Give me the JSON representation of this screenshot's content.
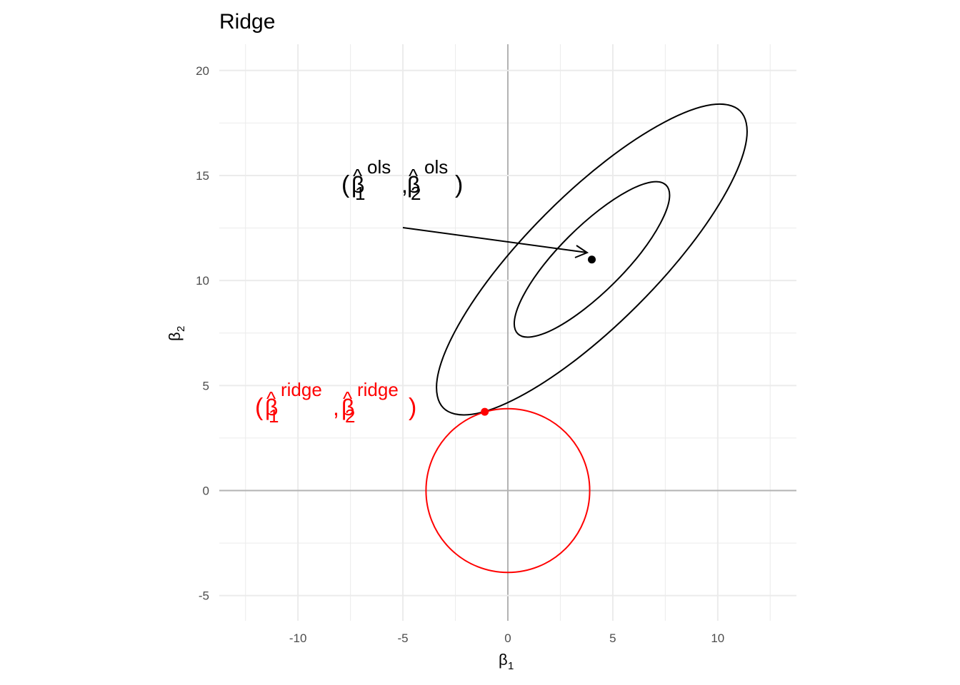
{
  "chart_data": {
    "type": "contour",
    "title": "Ridge",
    "xlabel": {
      "symbol": "β",
      "sub": "1"
    },
    "ylabel": {
      "symbol": "β",
      "sub": "2"
    },
    "xlim": [
      -13.75,
      13.75
    ],
    "ylim": [
      -6.2,
      21.25
    ],
    "xticks": [
      -10,
      -5,
      0,
      5,
      10
    ],
    "yticks": [
      -5,
      0,
      5,
      10,
      15,
      20
    ],
    "xminor": [
      -12.5,
      -7.5,
      -2.5,
      2.5,
      7.5,
      12.5
    ],
    "yminor": [
      -2.5,
      2.5,
      7.5,
      12.5,
      17.5
    ],
    "grid": true,
    "contours": [
      {
        "color": "#000000",
        "x": [
          11.07,
          9.7,
          7.46,
          4.69,
          1.82,
          -0.72,
          -2.54,
          -3.37,
          -3.07,
          -1.7,
          0.54,
          3.31,
          6.18,
          8.72,
          10.54,
          11.37
        ],
        "y": [
          18.07,
          18.37,
          17.54,
          15.72,
          13.18,
          10.31,
          7.54,
          5.3,
          3.93,
          3.63,
          4.46,
          6.28,
          8.82,
          11.69,
          14.46,
          16.7
        ]
      },
      {
        "color": "#000000",
        "x": [
          7.54,
          6.85,
          5.73,
          4.35,
          2.91,
          1.64,
          0.73,
          0.32,
          0.47,
          1.15,
          2.27,
          3.65,
          5.09,
          6.36,
          7.27,
          7.69
        ],
        "y": [
          14.54,
          14.69,
          14.27,
          13.36,
          12.09,
          10.66,
          9.27,
          8.15,
          7.47,
          7.32,
          7.73,
          8.64,
          9.91,
          11.34,
          12.73,
          13.85
        ]
      }
    ],
    "constraint": {
      "color": "#ff0000",
      "x": 0,
      "y": 0,
      "r": 3.9
    },
    "points": [
      {
        "x": 4,
        "y": 11,
        "color": "#000000",
        "label": {
          "open": "(",
          "symbol": "β",
          "hat": "^",
          "sub1": "1",
          "sub2": "2",
          "sup": "ols",
          "sep": ",",
          "close": ")"
        }
      },
      {
        "x": -1.1,
        "y": 3.75,
        "color": "#ff0000",
        "label": {
          "open": "(",
          "symbol": "β",
          "hat": "^",
          "sub1": "1",
          "sub2": "2",
          "sup": "ridge",
          "sep": ",",
          "close": ")"
        }
      }
    ]
  }
}
